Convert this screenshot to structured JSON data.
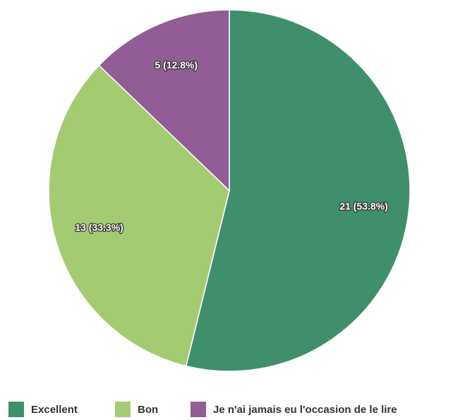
{
  "chart_data": {
    "type": "pie",
    "categories": [
      "Excellent",
      "Bon",
      "Je n'ai jamais eu l'occasion de le lire"
    ],
    "values": [
      21,
      13,
      5
    ],
    "value_labels": [
      "21 (53.8%)",
      "13 (33.3%)",
      "5 (12.8%)"
    ],
    "colors": [
      "#3f8f6d",
      "#a5cb72",
      "#925c96"
    ],
    "legend": "bottom"
  }
}
